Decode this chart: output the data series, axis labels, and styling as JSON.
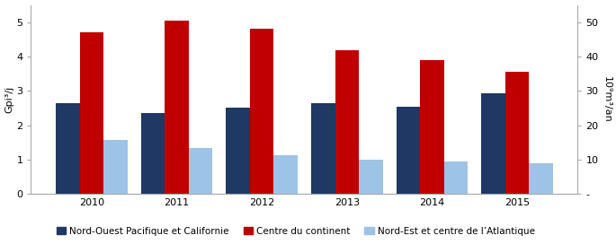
{
  "years": [
    2010,
    2011,
    2012,
    2013,
    2014,
    2015
  ],
  "series": {
    "nord_ouest": [
      2.65,
      2.35,
      2.5,
      2.65,
      2.55,
      2.92
    ],
    "centre": [
      4.7,
      5.05,
      4.8,
      4.18,
      3.9,
      3.55
    ],
    "nord_est": [
      1.58,
      1.35,
      1.13,
      1.0,
      0.95,
      0.9
    ]
  },
  "colors": {
    "nord_ouest": "#1F3864",
    "centre": "#C00000",
    "nord_est": "#9DC3E6"
  },
  "labels": {
    "nord_ouest": "Nord-Ouest Pacifique et Californie",
    "centre": "Centre du continent",
    "nord_est": "Nord-Est et centre de l’Atlantique"
  },
  "ylabel_left": "Gpi³/j",
  "ylabel_right": "10⁹m³/an",
  "ylim_left": [
    0,
    5.5
  ],
  "ylim_right": [
    0,
    55
  ],
  "yticks_left": [
    0,
    1,
    2,
    3,
    4,
    5
  ],
  "yticks_right": [
    0,
    10,
    20,
    30,
    40,
    50
  ],
  "background_color": "#FFFFFF",
  "bar_width": 0.28,
  "legend_fontsize": 7.5,
  "axis_fontsize": 8,
  "tick_fontsize": 8
}
